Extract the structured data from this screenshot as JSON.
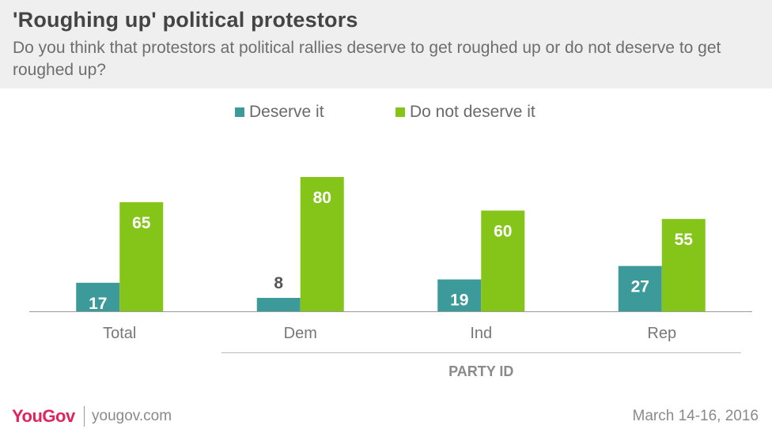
{
  "header": {
    "title": "'Roughing up' political protestors",
    "subtitle": "Do you think that protestors at political rallies deserve to get roughed up or do not deserve to get roughed up?"
  },
  "footer": {
    "logo": "YouGov",
    "url": "yougov.com",
    "date": "March 14-16, 2016"
  },
  "chart_data": {
    "type": "bar",
    "categories": [
      "Total",
      "Dem",
      "Ind",
      "Rep"
    ],
    "group_label": "PARTY ID",
    "group_categories": [
      "Dem",
      "Ind",
      "Rep"
    ],
    "series": [
      {
        "name": "Deserve it",
        "color": "#3d9a9b",
        "values": [
          17,
          8,
          19,
          27
        ]
      },
      {
        "name": "Do not deserve it",
        "color": "#85c51a",
        "values": [
          65,
          80,
          60,
          55
        ]
      }
    ],
    "ylim": [
      0,
      80
    ],
    "grid": false,
    "legend_position": "top-center"
  }
}
